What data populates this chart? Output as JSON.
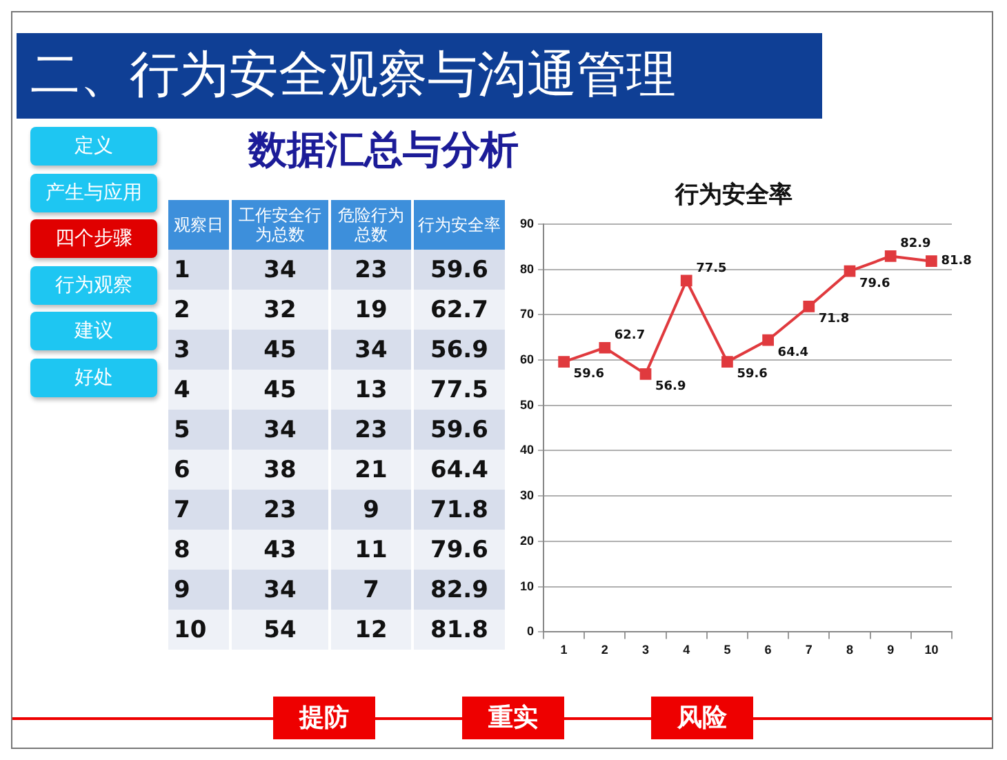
{
  "chart_data": [
    {
      "type": "other",
      "title": "二、行为安全观察与沟通管理",
      "annotations": [
        "定义",
        "产生与应用",
        "四个步骤",
        "行为观察",
        "建议",
        "好处"
      ],
      "colors": [
        "#1ec6f2",
        "#1ec6f2",
        "#e00000",
        "#1ec6f2",
        "#1ec6f2",
        "#1ec6f2"
      ]
    },
    {
      "type": "heatmap",
      "title": "数据汇总与分析",
      "ylabel": "观察日",
      "categories": [
        "工作安全行为总数",
        "危险行为总数",
        "行为安全率"
      ],
      "y_categories": [
        "1",
        "2",
        "3",
        "4",
        "5",
        "6",
        "7",
        "8",
        "9",
        "10"
      ],
      "cells": [
        [
          34,
          23,
          59.6
        ],
        [
          32,
          19,
          62.7
        ],
        [
          45,
          34,
          56.9
        ],
        [
          45,
          13,
          77.5
        ],
        [
          34,
          23,
          59.6
        ],
        [
          38,
          21,
          64.4
        ],
        [
          23,
          9,
          71.8
        ],
        [
          43,
          11,
          79.6
        ],
        [
          34,
          7,
          82.9
        ],
        [
          54,
          12,
          81.8
        ]
      ],
      "data_labels": true
    },
    {
      "type": "line",
      "title": "行为安全率",
      "categories": [
        "1",
        "2",
        "3",
        "4",
        "5",
        "6",
        "7",
        "8",
        "9",
        "10"
      ],
      "values": [
        59.6,
        62.7,
        56.9,
        77.5,
        59.6,
        64.4,
        71.8,
        79.6,
        82.9,
        81.8
      ],
      "color": "#e03a3e",
      "ylim": [
        0,
        90
      ],
      "yticks": [
        0,
        10,
        20,
        30,
        40,
        50,
        60,
        70,
        80,
        90
      ],
      "grid": "y",
      "marker": "square",
      "data_labels": true
    },
    {
      "type": "other",
      "annotations": [
        "提防",
        "重实",
        "风险"
      ],
      "color": "#ee0000"
    }
  ]
}
